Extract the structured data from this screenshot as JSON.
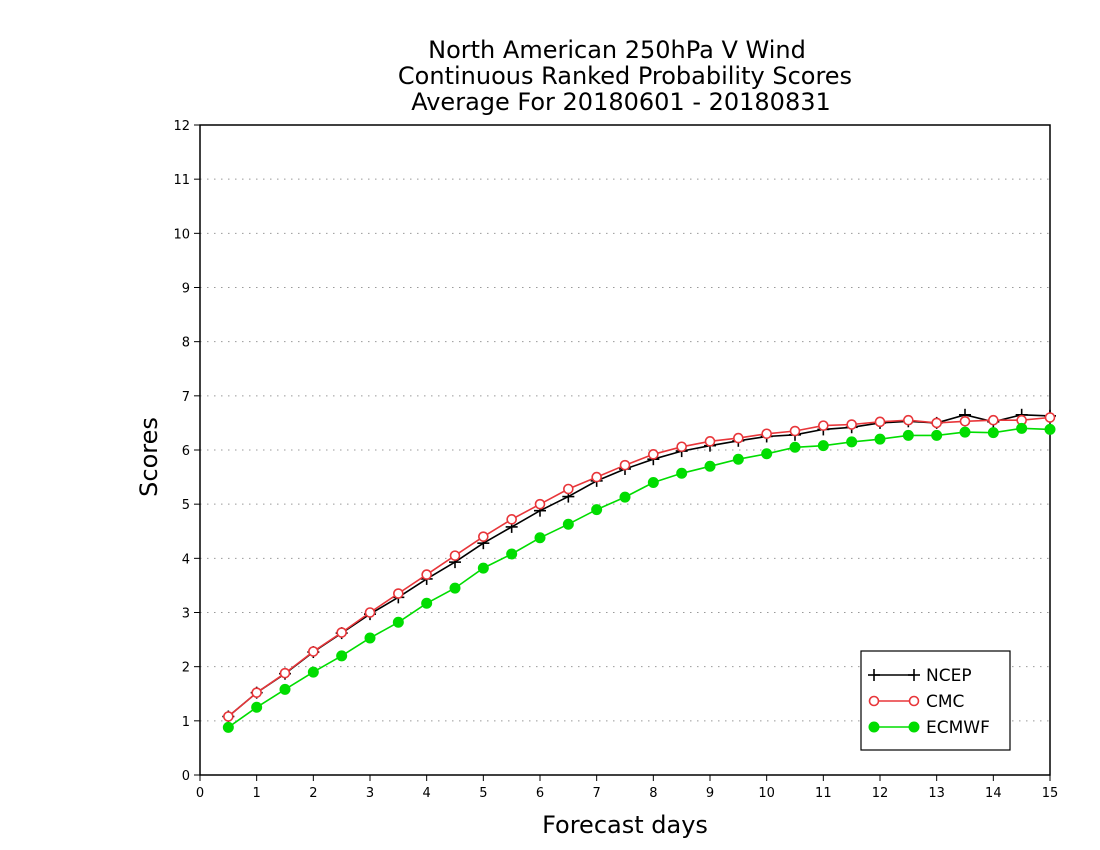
{
  "chart_data": {
    "type": "line",
    "title": [
      "North American 250hPa V Wind",
      "Continuous Ranked Probability Scores",
      "Average For 20180601 - 20180831"
    ],
    "xlabel": "Forecast days",
    "ylabel": "Scores",
    "xlim": [
      0,
      15
    ],
    "ylim": [
      0,
      12
    ],
    "x_ticks": [
      0,
      1,
      2,
      3,
      4,
      5,
      6,
      7,
      8,
      9,
      10,
      11,
      12,
      13,
      14,
      15
    ],
    "y_ticks": [
      0,
      1,
      2,
      3,
      4,
      5,
      6,
      7,
      8,
      9,
      10,
      11,
      12
    ],
    "grid": "horizontal dotted",
    "legend_position": "bottom-right",
    "x": [
      0.5,
      1,
      1.5,
      2,
      2.5,
      3,
      3.5,
      4,
      4.5,
      5,
      5.5,
      6,
      6.5,
      7,
      7.5,
      8,
      8.5,
      9,
      9.5,
      10,
      10.5,
      11,
      11.5,
      12,
      12.5,
      13,
      13.5,
      14,
      14.5,
      15
    ],
    "series": [
      {
        "name": "NCEP",
        "color": "#000000",
        "marker": "plus",
        "values": [
          1.08,
          1.52,
          1.87,
          2.27,
          2.62,
          2.97,
          3.28,
          3.62,
          3.93,
          4.28,
          4.58,
          4.88,
          5.14,
          5.43,
          5.65,
          5.83,
          5.98,
          6.08,
          6.17,
          6.25,
          6.28,
          6.38,
          6.42,
          6.5,
          6.53,
          6.5,
          6.65,
          6.52,
          6.65,
          6.63
        ]
      },
      {
        "name": "CMC",
        "color": "#e8363a",
        "marker": "open-circle",
        "values": [
          1.08,
          1.52,
          1.88,
          2.28,
          2.63,
          3.0,
          3.35,
          3.7,
          4.05,
          4.4,
          4.72,
          5.0,
          5.28,
          5.5,
          5.72,
          5.92,
          6.06,
          6.16,
          6.22,
          6.3,
          6.35,
          6.45,
          6.47,
          6.52,
          6.55,
          6.5,
          6.53,
          6.55,
          6.55,
          6.6
        ]
      },
      {
        "name": "ECMWF",
        "color": "#00dd00",
        "marker": "filled-circle",
        "values": [
          0.88,
          1.25,
          1.58,
          1.9,
          2.2,
          2.53,
          2.82,
          3.17,
          3.45,
          3.82,
          4.08,
          4.38,
          4.63,
          4.9,
          5.13,
          5.4,
          5.57,
          5.7,
          5.83,
          5.93,
          6.05,
          6.08,
          6.15,
          6.2,
          6.27,
          6.27,
          6.33,
          6.32,
          6.4,
          6.38
        ]
      }
    ]
  }
}
